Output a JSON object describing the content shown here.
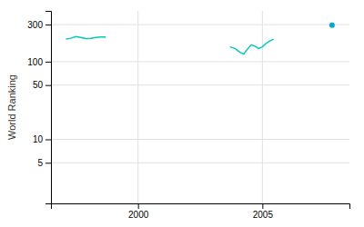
{
  "chart_data": {
    "type": "line",
    "ylabel": "World Ranking",
    "log": "y",
    "grid": true,
    "xlim": [
      1996.5,
      2008.5
    ],
    "xticks": [
      2000,
      2005
    ],
    "ylim": [
      1.5,
      450
    ],
    "yticks": [
      5,
      10,
      50,
      100,
      300
    ],
    "series": [
      {
        "type": "line",
        "color": "#00c8b8",
        "x": [
          1997.1,
          1997.3,
          1997.5,
          1997.7,
          1997.9,
          1998.1,
          1998.3,
          1998.5,
          1998.7
        ],
        "values": [
          195,
          200,
          210,
          205,
          198,
          200,
          205,
          208,
          207
        ]
      },
      {
        "type": "line",
        "color": "#00c8b8",
        "x": [
          2003.7,
          2003.9,
          2004.1,
          2004.25,
          2004.4,
          2004.55,
          2004.7,
          2004.85,
          2005.0,
          2005.15,
          2005.3,
          2005.45
        ],
        "values": [
          155,
          148,
          132,
          125,
          145,
          165,
          158,
          148,
          155,
          172,
          185,
          195
        ]
      },
      {
        "type": "scatter",
        "color": "#00aacc",
        "x": [
          2007.8
        ],
        "values": [
          295
        ]
      }
    ]
  }
}
